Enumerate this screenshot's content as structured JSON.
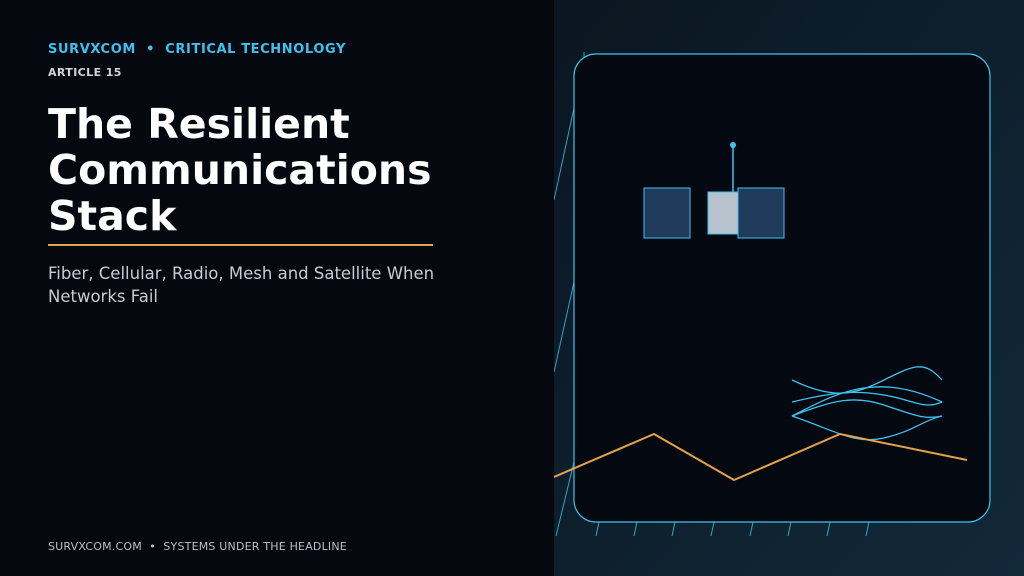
{
  "header": {
    "kicker": "SURVXCOM  •  CRITICAL TECHNOLOGY",
    "article": "ARTICLE 15"
  },
  "title": "The Resilient Communications Stack",
  "subtitle": "Fiber, Cellular, Radio, Mesh and Satellite When Networks Fail",
  "footer": "SURVXCOM.COM  •  SYSTEMS UNDER THE HEADLINE"
}
